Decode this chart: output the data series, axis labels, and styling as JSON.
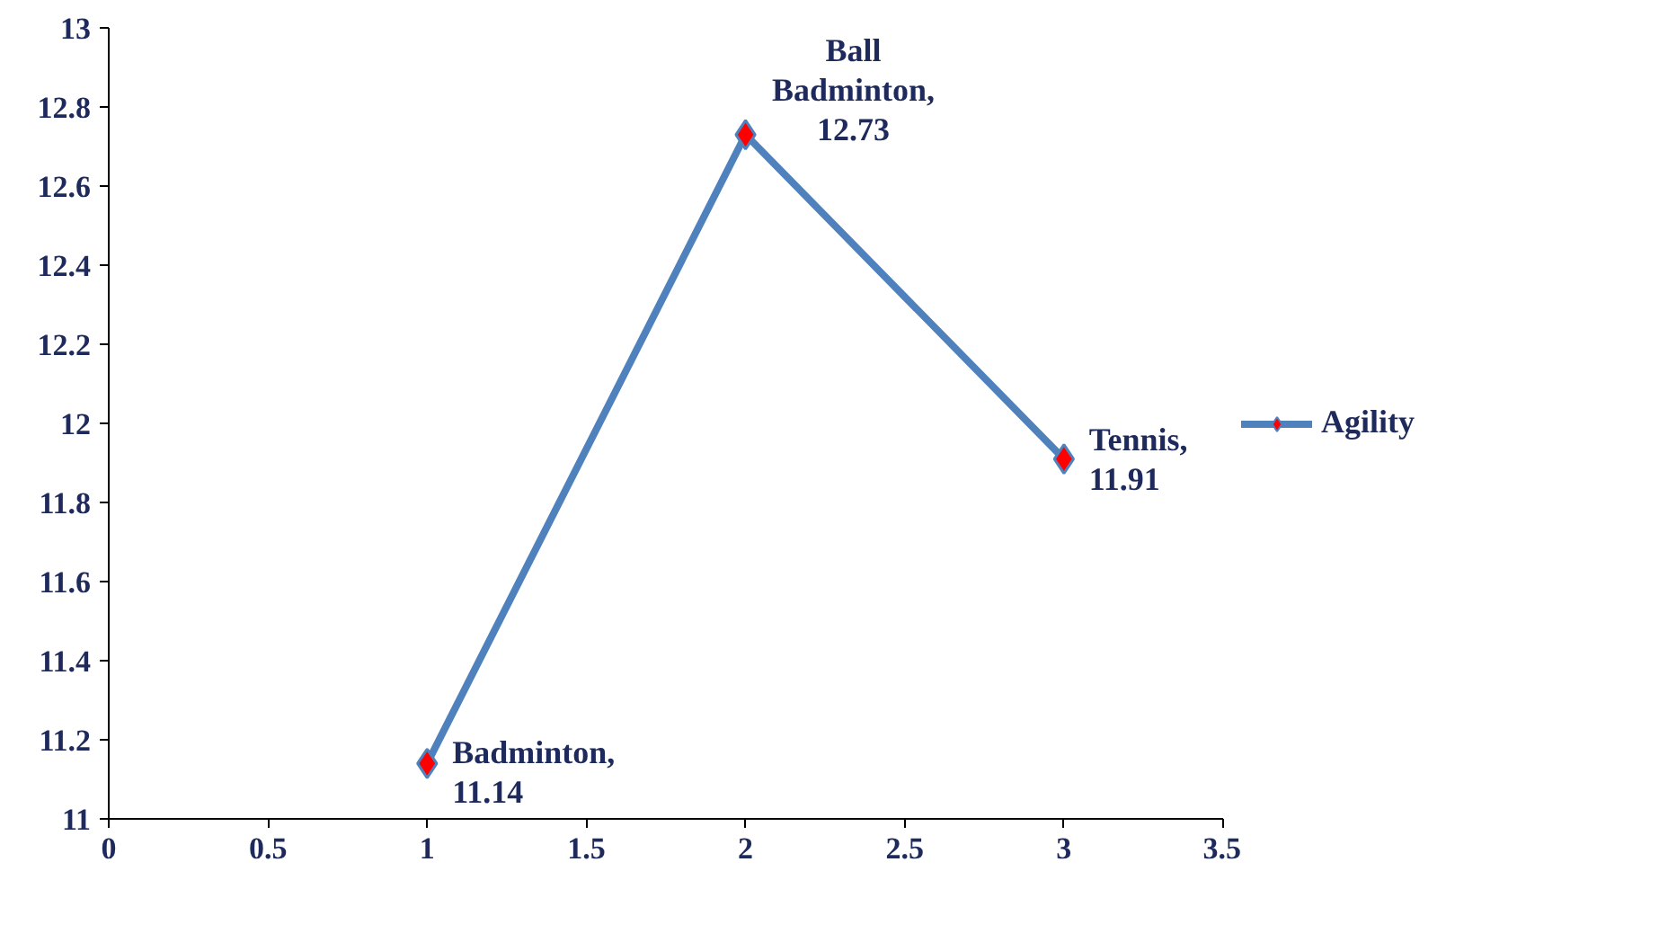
{
  "chart_data": {
    "type": "line",
    "x": [
      1,
      2,
      3
    ],
    "series": [
      {
        "name": "Agility",
        "color": "#4f81bd",
        "values": [
          11.14,
          12.73,
          11.91
        ],
        "value_labels": [
          "Badminton, 11.14",
          "Ball Badminton, 12.73",
          "Tennis, 11.91"
        ]
      }
    ],
    "xlim": [
      0,
      3.5
    ],
    "xticks": [
      0,
      0.5,
      1,
      1.5,
      2,
      2.5,
      3,
      3.5
    ],
    "ylim": [
      11,
      13
    ],
    "yticks": [
      11,
      11.2,
      11.4,
      11.6,
      11.8,
      12,
      12.2,
      12.4,
      12.6,
      12.8,
      13
    ],
    "grid": false,
    "legend": "right",
    "marker": "diamond",
    "line_style": "solid"
  }
}
